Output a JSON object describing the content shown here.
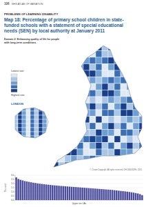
{
  "header": {
    "page": "106",
    "atlas": "NHS ATLAS OF VARIATION",
    "section": "PROBLEMS OF LEARNING DISABILITY"
  },
  "title_lines": [
    "Map 18: Percentage of primary school children in state-",
    "funded schools with a statement of special educational",
    "needs (SEN) by local authority at January 2011"
  ],
  "domain_lines": [
    "Domain 2: Enhancing quality of life for people",
    "with long-term conditions"
  ],
  "legend": {
    "low": "Lowest rate",
    "high": "Highest rate",
    "colors": [
      "#dfe9f5",
      "#a9c6e6",
      "#6e9fd2",
      "#3a6fb4",
      "#1a3f8a"
    ]
  },
  "inset_label": "LONDON",
  "copyright": "© Crown Copyright. All rights reserved. DH 100020290. 2011",
  "chart_data": {
    "type": "bar",
    "color": "#4b4d9c",
    "ylabel": "Per cent",
    "xlabel": "Upper tier LAs",
    "grid": true,
    "tick_labels": "y",
    "ylim": [
      0,
      3
    ],
    "yticks": [
      {
        "value": 0,
        "label": "0.0"
      },
      {
        "value": 0.5,
        "label": "0.5"
      },
      {
        "value": 1,
        "label": "1.0"
      },
      {
        "value": 1.5,
        "label": "1.5"
      },
      {
        "value": 2,
        "label": "2.0"
      },
      {
        "value": 2.5,
        "label": "2.5"
      },
      {
        "value": 3,
        "label": "3.0"
      }
    ],
    "categories": [
      null,
      null,
      null,
      null,
      null,
      null,
      null,
      null,
      null,
      null,
      null,
      null,
      null,
      null,
      null,
      null,
      null,
      null,
      null,
      null,
      null,
      null,
      null,
      null,
      null,
      null,
      null,
      null,
      null,
      null,
      null,
      null,
      null,
      null,
      null,
      null,
      null,
      null,
      null,
      null,
      null,
      null,
      null,
      null,
      null,
      null,
      null,
      null,
      null,
      null,
      null,
      null,
      null,
      null,
      null,
      null,
      null,
      null,
      null,
      null
    ],
    "values": [
      2.75,
      2.55,
      2.45,
      2.38,
      2.3,
      2.25,
      2.2,
      2.15,
      2.1,
      2.06,
      2.02,
      1.98,
      1.95,
      1.92,
      1.89,
      1.86,
      1.83,
      1.8,
      1.78,
      1.76,
      1.73,
      1.71,
      1.69,
      1.67,
      1.65,
      1.63,
      1.61,
      1.59,
      1.57,
      1.55,
      1.53,
      1.51,
      1.49,
      1.47,
      1.45,
      1.43,
      1.41,
      1.39,
      1.37,
      1.35,
      1.33,
      1.31,
      1.29,
      1.27,
      1.25,
      1.23,
      1.2,
      1.17,
      1.14,
      1.11,
      1.08,
      1.05,
      1.02,
      0.98,
      0.94,
      0.9,
      0.85,
      0.8,
      0.72,
      0.6
    ]
  }
}
